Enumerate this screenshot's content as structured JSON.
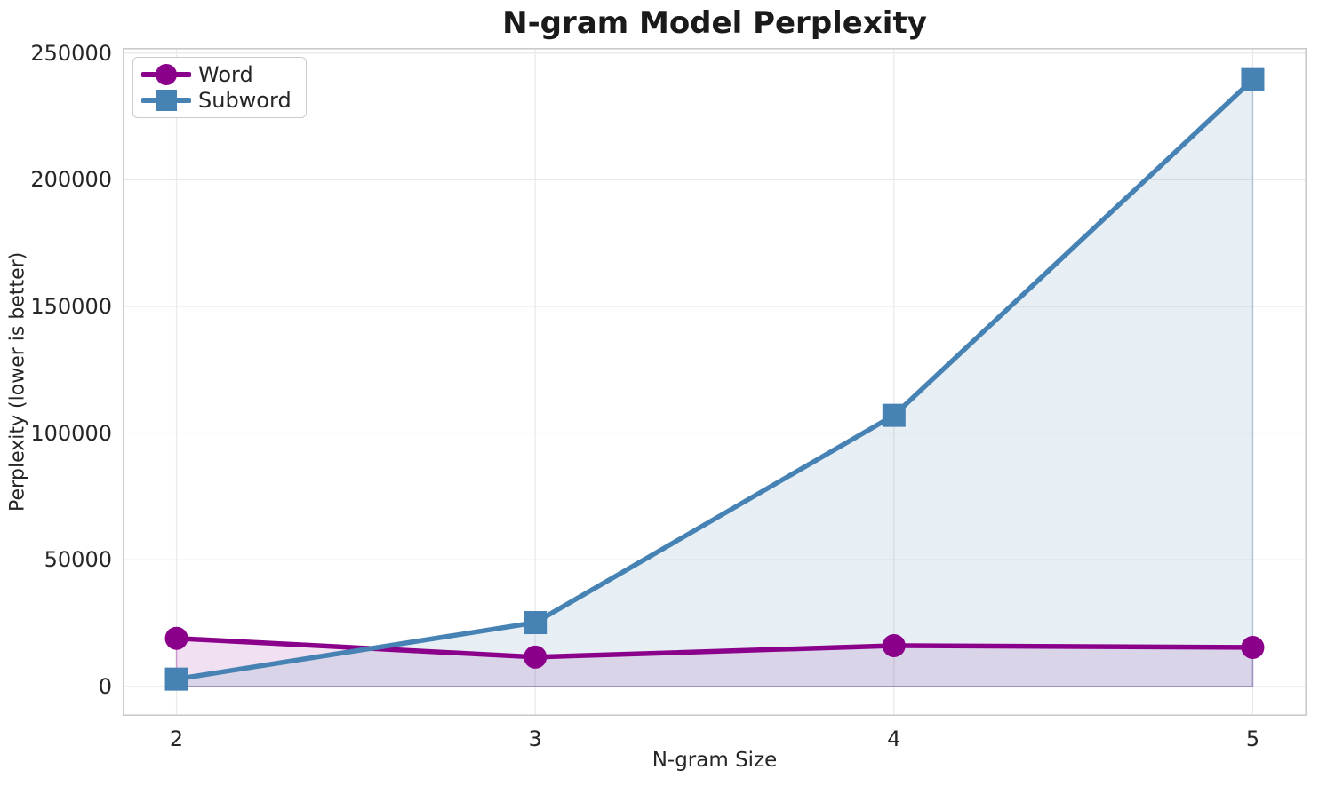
{
  "chart_data": {
    "type": "line",
    "title": "N-gram Model Perplexity",
    "xlabel": "N-gram Size",
    "ylabel": "Perplexity (lower is better)",
    "x": [
      2,
      3,
      4,
      5
    ],
    "xtick_labels": [
      "2",
      "3",
      "4",
      "5"
    ],
    "ytick_values": [
      0,
      50000,
      100000,
      150000,
      200000,
      250000
    ],
    "ytick_labels": [
      "0",
      "50000",
      "100000",
      "150000",
      "200000",
      "250000"
    ],
    "xlim": [
      1.85,
      5.15
    ],
    "ylim": [
      -11600,
      252000
    ],
    "grid": true,
    "legend_position": "upper left",
    "fill_baseline": 0,
    "series": [
      {
        "name": "Word",
        "marker": "circle",
        "color": "#8B008B",
        "fill": "rgba(139,0,139,0.12)",
        "edge": "rgba(139,0,139,0.30)",
        "values": [
          19000,
          11600,
          16100,
          15400
        ]
      },
      {
        "name": "Subword",
        "marker": "square",
        "color": "#4682B4",
        "fill": "rgba(70,130,180,0.13)",
        "edge": "rgba(70,130,180,0.30)",
        "values": [
          2900,
          25200,
          107000,
          239500
        ]
      }
    ],
    "colors": {
      "grid": "#eaeaea",
      "spine": "#cbcbcb",
      "text": "#262626",
      "title": "#1a1a1a",
      "background": "#ffffff"
    }
  }
}
